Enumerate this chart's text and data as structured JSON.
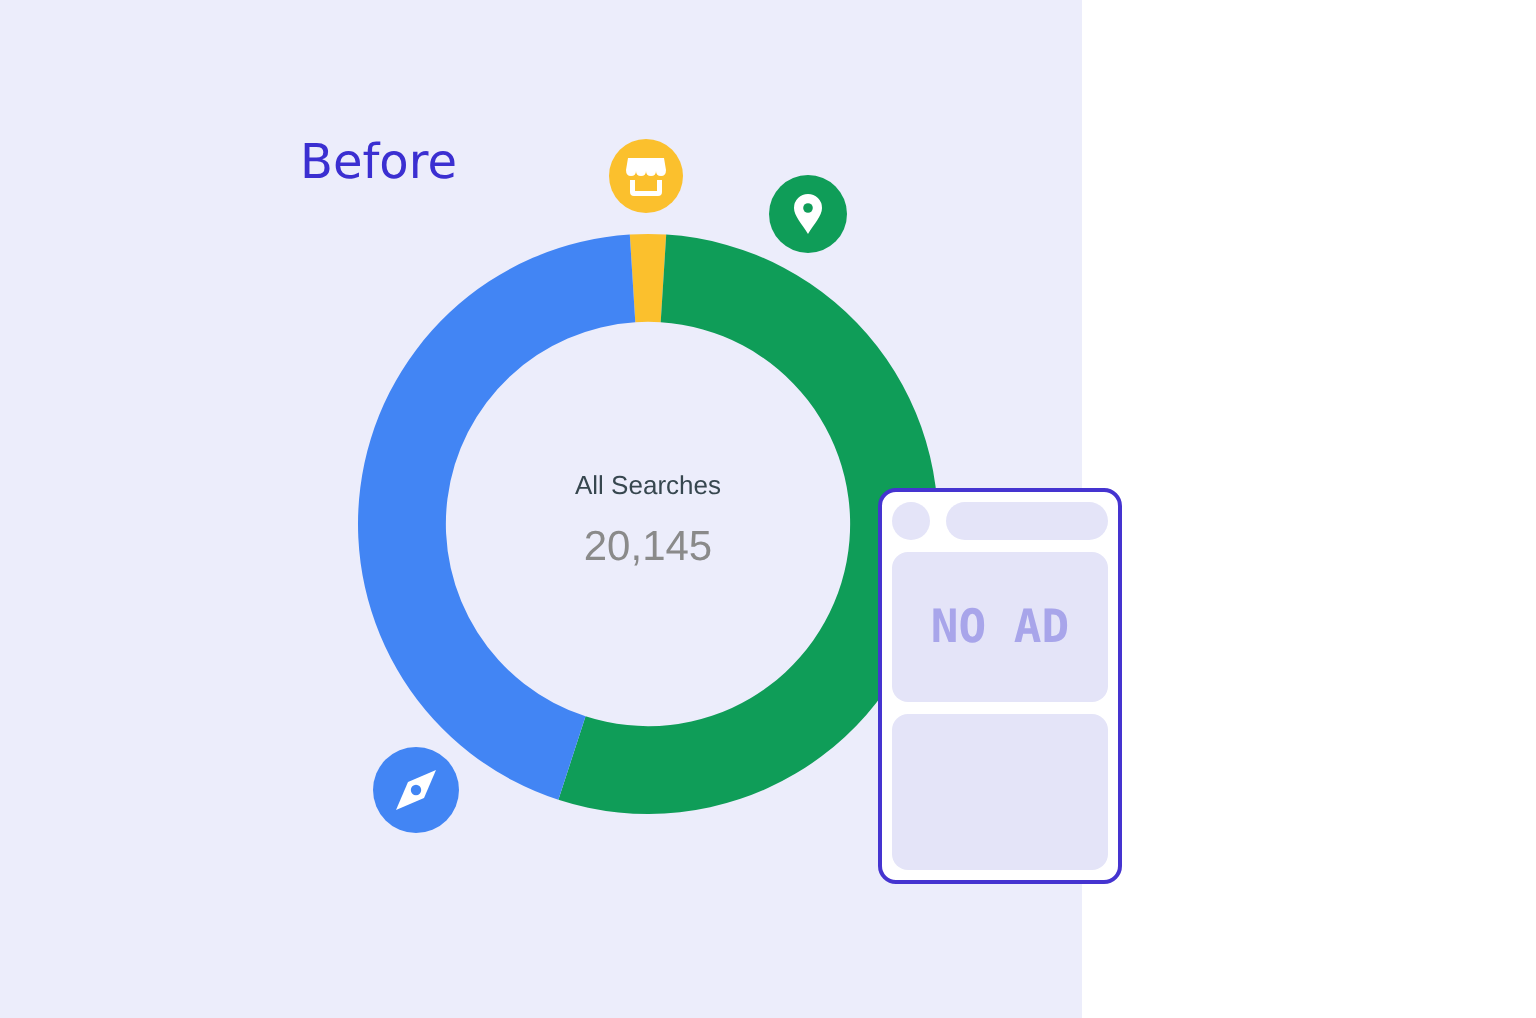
{
  "chart_data": {
    "type": "donut",
    "title": "Before",
    "categories": [
      null,
      null,
      null
    ],
    "values": [
      2,
      54,
      44
    ],
    "colors": [
      "#fbc02d",
      "#0f9d58",
      "#4285f4"
    ],
    "annotations": [
      "All Searches",
      "20,145",
      "NO AD"
    ]
  }
}
